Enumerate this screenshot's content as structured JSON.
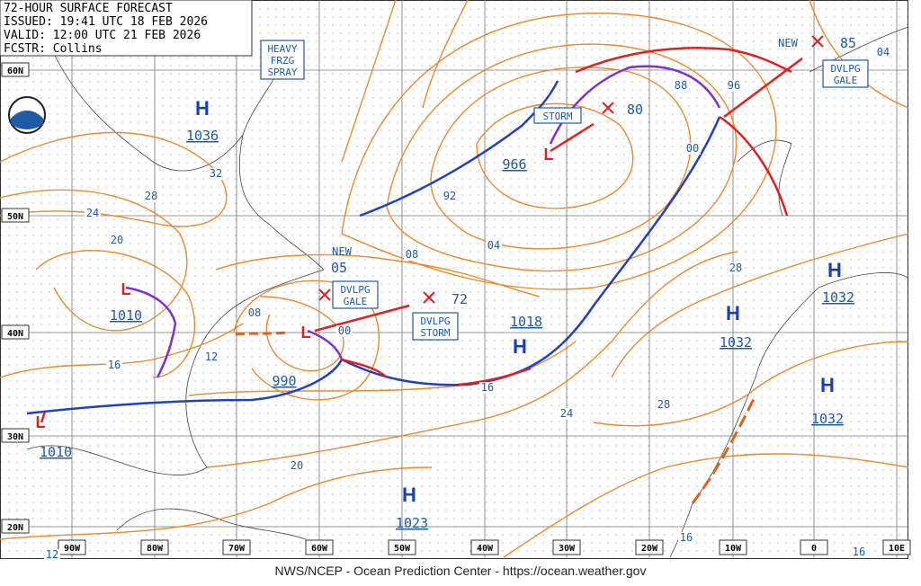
{
  "header": {
    "title": "72-HOUR SURFACE FORECAST",
    "issued": "ISSUED: 19:41 UTC 18 FEB 2026",
    "valid": "VALID: 12:00 UTC 21 FEB 2026",
    "forecaster": "FCSTR: Collins"
  },
  "latitudes": [
    "60N",
    "50N",
    "40N",
    "30N",
    "20N"
  ],
  "longitudes": [
    "90W",
    "80W",
    "70W",
    "60W",
    "50W",
    "40W",
    "30W",
    "20W",
    "10W",
    "0",
    "10E"
  ],
  "centers": [
    {
      "symbol": "H",
      "pressure": "1036"
    },
    {
      "symbol": "L",
      "pressure": "966"
    },
    {
      "symbol": "L",
      "pressure": "990"
    },
    {
      "symbol": "L",
      "pressure": "1010"
    },
    {
      "symbol": "L",
      "pressure": "1010"
    },
    {
      "symbol": "H",
      "pressure": "1018"
    },
    {
      "symbol": "H",
      "pressure": "1032"
    },
    {
      "symbol": "H",
      "pressure": "1032"
    },
    {
      "symbol": "H",
      "pressure": "1032"
    },
    {
      "symbol": "H",
      "pressure": "1023"
    }
  ],
  "forecast_pressures": [
    "80",
    "72",
    "85",
    "05"
  ],
  "new_labels": [
    "NEW",
    "NEW"
  ],
  "isobar_labels": [
    "32",
    "28",
    "24",
    "20",
    "16",
    "12",
    "08",
    "00",
    "08",
    "04",
    "92",
    "88",
    "96",
    "00",
    "28",
    "24",
    "28",
    "16",
    "20",
    "16",
    "16",
    "12",
    "04"
  ],
  "boxes": [
    {
      "lines": [
        "HEAVY",
        "FRZG",
        "SPRAY"
      ]
    },
    {
      "lines": [
        "STORM"
      ]
    },
    {
      "lines": [
        "DVLPG",
        "GALE"
      ]
    },
    {
      "lines": [
        "DVLPG",
        "STORM"
      ]
    },
    {
      "lines": [
        "DVLPG",
        "GALE"
      ]
    }
  ],
  "footer": "NWS/NCEP - Ocean Prediction Center - https://ocean.weather.gov"
}
